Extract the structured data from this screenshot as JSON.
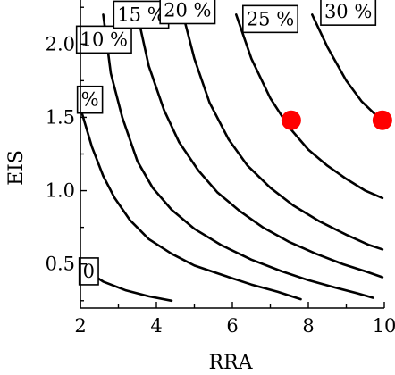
{
  "chart_data": {
    "type": "line",
    "title": "",
    "xlabel": "RRA",
    "ylabel": "EIS",
    "xlim": [
      2,
      10
    ],
    "ylim": [
      0.2,
      2.3
    ],
    "xticks": [
      "2",
      "4",
      "6",
      "8",
      "10"
    ],
    "yticks": [
      "0.5",
      "1.0",
      "1.5",
      "2.0"
    ],
    "xtick_values": [
      2,
      4,
      6,
      8,
      10
    ],
    "ytick_values": [
      0.5,
      1.0,
      1.5,
      2.0
    ],
    "grid": false,
    "marker_color": "#ff0000",
    "series": [
      {
        "label": "0",
        "points": [
          [
            2.0,
            0.48
          ],
          [
            2.6,
            0.38
          ],
          [
            3.2,
            0.32
          ],
          [
            3.8,
            0.28
          ],
          [
            4.4,
            0.25
          ]
        ],
        "label_at": [
          2.22,
          0.45
        ]
      },
      {
        "label": "%",
        "points": [
          [
            2.05,
            1.52
          ],
          [
            2.3,
            1.3
          ],
          [
            2.6,
            1.1
          ],
          [
            2.9,
            0.95
          ],
          [
            3.3,
            0.8
          ],
          [
            3.8,
            0.67
          ],
          [
            4.4,
            0.57
          ],
          [
            5.0,
            0.49
          ],
          [
            5.8,
            0.42
          ],
          [
            6.5,
            0.36
          ],
          [
            7.2,
            0.31
          ],
          [
            7.8,
            0.26
          ]
        ],
        "label_at": [
          2.25,
          1.62
        ]
      },
      {
        "label": "10 %",
        "points": [
          [
            2.6,
            2.2
          ],
          [
            2.8,
            1.8
          ],
          [
            3.1,
            1.5
          ],
          [
            3.5,
            1.2
          ],
          [
            3.9,
            1.02
          ],
          [
            4.4,
            0.87
          ],
          [
            5.0,
            0.74
          ],
          [
            5.7,
            0.63
          ],
          [
            6.5,
            0.53
          ],
          [
            7.3,
            0.45
          ],
          [
            8.0,
            0.39
          ],
          [
            8.7,
            0.34
          ],
          [
            9.3,
            0.3
          ],
          [
            9.7,
            0.27
          ]
        ],
        "label_at": [
          2.62,
          2.03
        ]
      },
      {
        "label": "15 %",
        "points": [
          [
            3.5,
            2.2
          ],
          [
            3.8,
            1.85
          ],
          [
            4.2,
            1.55
          ],
          [
            4.6,
            1.33
          ],
          [
            5.1,
            1.14
          ],
          [
            5.6,
            0.99
          ],
          [
            6.2,
            0.86
          ],
          [
            6.8,
            0.75
          ],
          [
            7.5,
            0.65
          ],
          [
            8.2,
            0.57
          ],
          [
            8.9,
            0.5
          ],
          [
            9.5,
            0.45
          ],
          [
            9.95,
            0.41
          ]
        ],
        "label_at": [
          3.6,
          2.2
        ]
      },
      {
        "label": "20 %",
        "points": [
          [
            4.7,
            2.2
          ],
          [
            5.0,
            1.9
          ],
          [
            5.4,
            1.6
          ],
          [
            5.9,
            1.35
          ],
          [
            6.4,
            1.17
          ],
          [
            7.0,
            1.02
          ],
          [
            7.6,
            0.9
          ],
          [
            8.3,
            0.79
          ],
          [
            9.0,
            0.7
          ],
          [
            9.6,
            0.63
          ],
          [
            9.95,
            0.6
          ]
        ],
        "label_at": [
          4.82,
          2.23
        ]
      },
      {
        "label": "25 %",
        "points": [
          [
            6.1,
            2.2
          ],
          [
            6.5,
            1.9
          ],
          [
            7.0,
            1.63
          ],
          [
            7.5,
            1.43
          ],
          [
            8.0,
            1.28
          ],
          [
            8.5,
            1.17
          ],
          [
            9.0,
            1.08
          ],
          [
            9.5,
            1.0
          ],
          [
            9.95,
            0.95
          ]
        ],
        "label_at": [
          7.0,
          2.17
        ]
      },
      {
        "label": "30 %",
        "points": [
          [
            8.1,
            2.2
          ],
          [
            8.5,
            1.98
          ],
          [
            9.0,
            1.75
          ],
          [
            9.4,
            1.61
          ],
          [
            9.8,
            1.51
          ],
          [
            9.95,
            1.48
          ]
        ],
        "label_at": [
          9.05,
          2.22
        ]
      }
    ],
    "markers": [
      {
        "x": 7.55,
        "y": 1.48
      },
      {
        "x": 9.95,
        "y": 1.48
      }
    ]
  }
}
